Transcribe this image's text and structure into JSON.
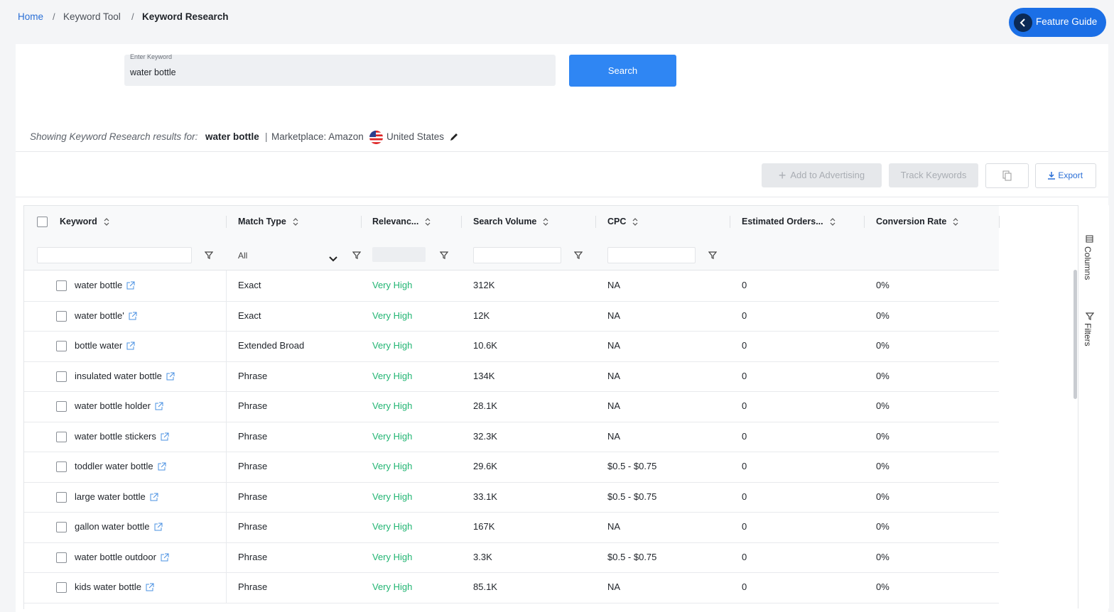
{
  "breadcrumb": {
    "items": [
      "Home",
      "Keyword Tool",
      "Keyword Research"
    ],
    "separator": "/"
  },
  "feature_guide": "Feature Guide",
  "search": {
    "label": "Enter Keyword",
    "value": "water bottle",
    "button": "Search"
  },
  "results_line": {
    "prefix": "Showing Keyword Research results for:",
    "keyword": "water bottle",
    "divider": "|",
    "marketplace": "Marketplace: Amazon",
    "country": "United States"
  },
  "toolbar": {
    "add": "Add to Advertising",
    "track": "Track Keywords",
    "export": "Export"
  },
  "table": {
    "columns": [
      "Keyword",
      "Match Type",
      "Relevanc...",
      "Search Volume",
      "CPC",
      "Estimated Orders...",
      "Conversion Rate"
    ],
    "match_filter": "All",
    "rows": [
      [
        "water bottle",
        "Exact",
        "Very High",
        "312K",
        "NA",
        "0",
        "0%"
      ],
      [
        "water bottle'",
        "Exact",
        "Very High",
        "12K",
        "NA",
        "0",
        "0%"
      ],
      [
        "bottle water",
        "Extended Broad",
        "Very High",
        "10.6K",
        "NA",
        "0",
        "0%"
      ],
      [
        "insulated water bottle",
        "Phrase",
        "Very High",
        "134K",
        "NA",
        "0",
        "0%"
      ],
      [
        "water bottle holder",
        "Phrase",
        "Very High",
        "28.1K",
        "NA",
        "0",
        "0%"
      ],
      [
        "water bottle stickers",
        "Phrase",
        "Very High",
        "32.3K",
        "NA",
        "0",
        "0%"
      ],
      [
        "toddler water bottle",
        "Phrase",
        "Very High",
        "29.6K",
        "$0.5 - $0.75",
        "0",
        "0%"
      ],
      [
        "large water bottle",
        "Phrase",
        "Very High",
        "33.1K",
        "$0.5 - $0.75",
        "0",
        "0%"
      ],
      [
        "gallon water bottle",
        "Phrase",
        "Very High",
        "167K",
        "NA",
        "0",
        "0%"
      ],
      [
        "water bottle outdoor",
        "Phrase",
        "Very High",
        "3.3K",
        "$0.5 - $0.75",
        "0",
        "0%"
      ],
      [
        "kids water bottle",
        "Phrase",
        "Very High",
        "85.1K",
        "NA",
        "0",
        "0%"
      ]
    ]
  },
  "side_panel": [
    "Columns",
    "Filters"
  ]
}
